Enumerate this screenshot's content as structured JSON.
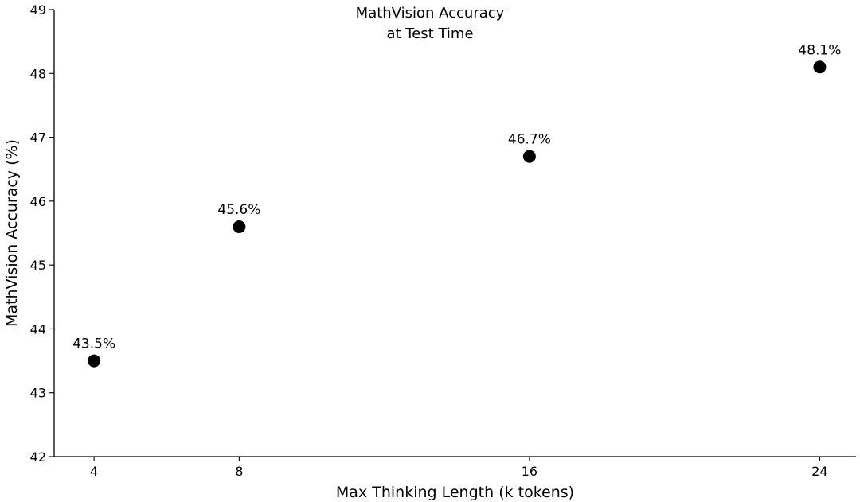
{
  "chart_data": {
    "type": "scatter",
    "title": [
      "MathVision Accuracy",
      "at Test Time"
    ],
    "xlabel": "Max Thinking Length (k tokens)",
    "ylabel": "MathVision Accuracy (%)",
    "x": [
      4,
      8,
      16,
      24
    ],
    "y": [
      43.5,
      45.6,
      46.7,
      48.1
    ],
    "point_labels": [
      "43.5%",
      "45.6%",
      "46.7%",
      "48.1%"
    ],
    "xlim": [
      2.9,
      25.0
    ],
    "ylim": [
      42,
      49
    ],
    "xticks": [
      4,
      8,
      16,
      24
    ],
    "xtick_labels": [
      "4",
      "8",
      "16",
      "24"
    ],
    "yticks": [
      42,
      43,
      44,
      45,
      46,
      47,
      48,
      49
    ],
    "ytick_labels": [
      "42",
      "43",
      "44",
      "45",
      "46",
      "47",
      "48",
      "49"
    ],
    "grid": false,
    "marker_color": "#000000"
  }
}
